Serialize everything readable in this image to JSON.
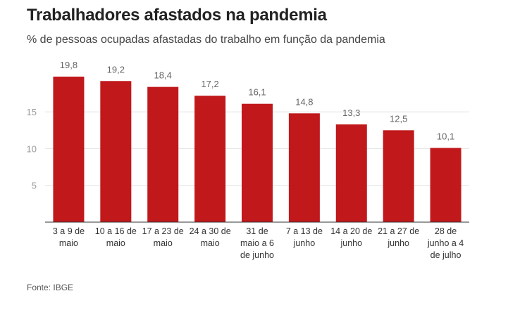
{
  "chart_data": {
    "type": "bar",
    "title": "Trabalhadores afastados na pandemia",
    "subtitle": "% de pessoas ocupadas afastadas do trabalho em função da pandemia",
    "source": "Fonte: IBGE",
    "categories": [
      "3 a 9 de maio",
      "10 a 16 de maio",
      "17 a 23 de maio",
      "24 a 30 de maio",
      "31 de maio a 6 de junho",
      "7 a 13 de junho",
      "14 a 20 de junho",
      "21 a 27 de junho",
      "28 de junho a 4 de julho"
    ],
    "category_lines": [
      [
        "3 a 9 de",
        "maio"
      ],
      [
        "10 a 16 de",
        "maio"
      ],
      [
        "17 a 23 de",
        "maio"
      ],
      [
        "24 a 30 de",
        "maio"
      ],
      [
        "31 de",
        "maio a 6",
        "de junho"
      ],
      [
        "7 a 13 de",
        "junho"
      ],
      [
        "14 a 20 de",
        "junho"
      ],
      [
        "21 a 27 de",
        "junho"
      ],
      [
        "28 de",
        "junho a 4",
        "de julho"
      ]
    ],
    "values": [
      19.8,
      19.2,
      18.4,
      17.2,
      16.1,
      14.8,
      13.3,
      12.5,
      10.1
    ],
    "value_labels": [
      "19,8",
      "19,2",
      "18,4",
      "17,2",
      "16,1",
      "14,8",
      "13,3",
      "12,5",
      "10,1"
    ],
    "yticks": [
      5,
      10,
      15
    ],
    "ytick_labels": [
      "5",
      "10",
      "15"
    ],
    "ylim": [
      0,
      21
    ],
    "grid": true,
    "bar_color": "#c0181b"
  }
}
